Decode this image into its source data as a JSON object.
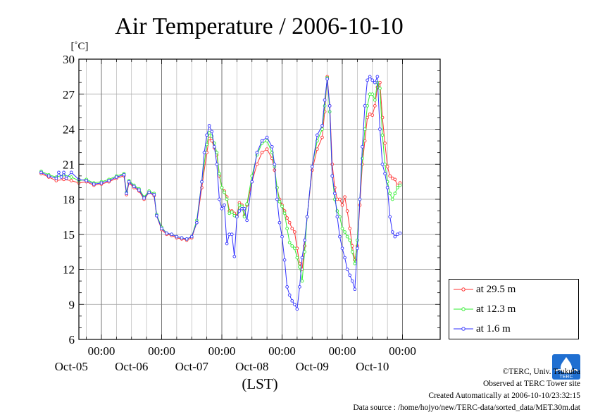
{
  "chart_data": {
    "type": "line",
    "title": "Air Temperature / 2006-10-10",
    "ylabel": "[˚C]",
    "xlabel": "(LST)",
    "ylim": [
      6,
      30
    ],
    "yticks": [
      6,
      9,
      12,
      15,
      18,
      21,
      24,
      27,
      30
    ],
    "xlim_hours": [
      0,
      144
    ],
    "x_tick_labels": [
      {
        "time": "00:00",
        "date": "Oct-05"
      },
      {
        "time": "00:00",
        "date": "Oct-06"
      },
      {
        "time": "00:00",
        "date": "Oct-07"
      },
      {
        "time": "00:00",
        "date": "Oct-08"
      },
      {
        "time": "00:00",
        "date": "Oct-09"
      },
      {
        "time": "00:00",
        "date": "Oct-10"
      }
    ],
    "grid": true,
    "legend_position": "right",
    "series": [
      {
        "name": "at 29.5 m",
        "color": "#ff3333",
        "points": [
          [
            0,
            20.2
          ],
          [
            3,
            19.9
          ],
          [
            6,
            19.6
          ],
          [
            9,
            19.7
          ],
          [
            12,
            19.6
          ],
          [
            15,
            19.4
          ],
          [
            18,
            19.5
          ],
          [
            21,
            19.2
          ],
          [
            24,
            19.3
          ],
          [
            27,
            19.5
          ],
          [
            30,
            19.8
          ],
          [
            33,
            20.0
          ],
          [
            34,
            18.4
          ],
          [
            35,
            19.4
          ],
          [
            37,
            19.0
          ],
          [
            39,
            18.7
          ],
          [
            41,
            18.0
          ],
          [
            43,
            18.6
          ],
          [
            45,
            18.3
          ],
          [
            46,
            16.6
          ],
          [
            48,
            15.4
          ],
          [
            50,
            15.0
          ],
          [
            52,
            14.9
          ],
          [
            54,
            14.7
          ],
          [
            56,
            14.6
          ],
          [
            58,
            14.5
          ],
          [
            60,
            14.7
          ],
          [
            62,
            16.0
          ],
          [
            64,
            19.0
          ],
          [
            66,
            22.0
          ],
          [
            67,
            23.2
          ],
          [
            68,
            23.0
          ],
          [
            69,
            22.4
          ],
          [
            70,
            21.8
          ],
          [
            71,
            20.0
          ],
          [
            72,
            19.0
          ],
          [
            73,
            18.7
          ],
          [
            74,
            18.2
          ],
          [
            75,
            17.0
          ],
          [
            76,
            17.0
          ],
          [
            77,
            16.8
          ],
          [
            78,
            16.6
          ],
          [
            79,
            17.7
          ],
          [
            80,
            17.5
          ],
          [
            81,
            16.6
          ],
          [
            82,
            17.5
          ],
          [
            84,
            19.5
          ],
          [
            86,
            21.0
          ],
          [
            88,
            22.0
          ],
          [
            90,
            22.3
          ],
          [
            92,
            21.5
          ],
          [
            93,
            20.5
          ],
          [
            94,
            19.0
          ],
          [
            95,
            18.0
          ],
          [
            96,
            17.5
          ],
          [
            97,
            17.0
          ],
          [
            98,
            16.4
          ],
          [
            99,
            16.0
          ],
          [
            100,
            15.5
          ],
          [
            101,
            15.2
          ],
          [
            102,
            13.8
          ],
          [
            103,
            12.5
          ],
          [
            104,
            12.0
          ],
          [
            105,
            14.0
          ],
          [
            106,
            16.5
          ],
          [
            108,
            20.5
          ],
          [
            110,
            22.3
          ],
          [
            112,
            23.3
          ],
          [
            113,
            25.5
          ],
          [
            114,
            28.5
          ],
          [
            115,
            26.0
          ],
          [
            116,
            21.0
          ],
          [
            117,
            19.0
          ],
          [
            118,
            18.0
          ],
          [
            119,
            18.0
          ],
          [
            120,
            17.5
          ],
          [
            121,
            18.2
          ],
          [
            122,
            17.0
          ],
          [
            123,
            15.5
          ],
          [
            124,
            14.0
          ],
          [
            125,
            12.8
          ],
          [
            126,
            14.0
          ],
          [
            127,
            17.5
          ],
          [
            128,
            21.0
          ],
          [
            129,
            23.0
          ],
          [
            130,
            25.0
          ],
          [
            131,
            25.3
          ],
          [
            132,
            25.2
          ],
          [
            133,
            26.0
          ],
          [
            134,
            27.6
          ],
          [
            135,
            28.0
          ],
          [
            136,
            25.0
          ],
          [
            137,
            22.8
          ],
          [
            138,
            20.8
          ],
          [
            139,
            20.0
          ],
          [
            140,
            19.8
          ],
          [
            141,
            19.7
          ],
          [
            142,
            19.2
          ],
          [
            143,
            19.4
          ]
        ]
      },
      {
        "name": "at 12.3 m",
        "color": "#33ee33",
        "points": [
          [
            0,
            20.4
          ],
          [
            3,
            20.1
          ],
          [
            6,
            19.9
          ],
          [
            9,
            20.1
          ],
          [
            12,
            19.9
          ],
          [
            15,
            19.6
          ],
          [
            18,
            19.7
          ],
          [
            21,
            19.4
          ],
          [
            24,
            19.5
          ],
          [
            27,
            19.7
          ],
          [
            30,
            20.0
          ],
          [
            33,
            20.2
          ],
          [
            34,
            18.6
          ],
          [
            35,
            19.6
          ],
          [
            37,
            19.2
          ],
          [
            39,
            18.9
          ],
          [
            41,
            18.2
          ],
          [
            43,
            18.7
          ],
          [
            45,
            18.5
          ],
          [
            46,
            16.7
          ],
          [
            48,
            15.6
          ],
          [
            50,
            15.1
          ],
          [
            52,
            15.0
          ],
          [
            54,
            14.8
          ],
          [
            56,
            14.7
          ],
          [
            58,
            14.6
          ],
          [
            60,
            14.8
          ],
          [
            62,
            16.2
          ],
          [
            64,
            19.5
          ],
          [
            66,
            22.7
          ],
          [
            67,
            23.7
          ],
          [
            68,
            23.4
          ],
          [
            69,
            22.8
          ],
          [
            70,
            22.0
          ],
          [
            71,
            20.2
          ],
          [
            72,
            19.0
          ],
          [
            73,
            18.6
          ],
          [
            74,
            18.0
          ],
          [
            75,
            16.8
          ],
          [
            76,
            16.9
          ],
          [
            77,
            16.6
          ],
          [
            78,
            16.5
          ],
          [
            79,
            17.5
          ],
          [
            80,
            17.4
          ],
          [
            81,
            16.5
          ],
          [
            82,
            17.6
          ],
          [
            84,
            20.0
          ],
          [
            86,
            21.8
          ],
          [
            88,
            22.8
          ],
          [
            90,
            23.0
          ],
          [
            92,
            22.0
          ],
          [
            93,
            20.8
          ],
          [
            94,
            19.0
          ],
          [
            95,
            17.8
          ],
          [
            96,
            17.4
          ],
          [
            97,
            16.8
          ],
          [
            98,
            15.5
          ],
          [
            99,
            14.3
          ],
          [
            100,
            14.0
          ],
          [
            101,
            13.8
          ],
          [
            102,
            13.0
          ],
          [
            103,
            12.2
          ],
          [
            104,
            11.0
          ],
          [
            105,
            13.5
          ],
          [
            106,
            16.5
          ],
          [
            108,
            20.8
          ],
          [
            110,
            23.0
          ],
          [
            112,
            24.0
          ],
          [
            113,
            26.0
          ],
          [
            114,
            28.4
          ],
          [
            115,
            25.5
          ],
          [
            116,
            20.0
          ],
          [
            117,
            18.0
          ],
          [
            118,
            17.0
          ],
          [
            119,
            16.5
          ],
          [
            120,
            15.5
          ],
          [
            121,
            15.2
          ],
          [
            122,
            14.8
          ],
          [
            123,
            14.5
          ],
          [
            124,
            13.5
          ],
          [
            125,
            12.5
          ],
          [
            126,
            14.5
          ],
          [
            127,
            18.0
          ],
          [
            128,
            21.5
          ],
          [
            129,
            24.0
          ],
          [
            130,
            26.0
          ],
          [
            131,
            27.0
          ],
          [
            132,
            27.0
          ],
          [
            133,
            26.5
          ],
          [
            134,
            28.0
          ],
          [
            135,
            27.5
          ],
          [
            136,
            23.5
          ],
          [
            137,
            21.0
          ],
          [
            138,
            19.5
          ],
          [
            139,
            18.5
          ],
          [
            140,
            18.0
          ],
          [
            141,
            18.5
          ],
          [
            142,
            19.0
          ],
          [
            143,
            19.2
          ]
        ]
      },
      {
        "name": "at 1.6 m",
        "color": "#3333ff",
        "points": [
          [
            0,
            20.3
          ],
          [
            3,
            20.0
          ],
          [
            6,
            19.8
          ],
          [
            7,
            20.3
          ],
          [
            8,
            19.9
          ],
          [
            9,
            20.3
          ],
          [
            10,
            19.8
          ],
          [
            12,
            20.3
          ],
          [
            15,
            19.7
          ],
          [
            18,
            19.6
          ],
          [
            21,
            19.3
          ],
          [
            24,
            19.4
          ],
          [
            27,
            19.6
          ],
          [
            30,
            19.9
          ],
          [
            33,
            20.1
          ],
          [
            34,
            18.5
          ],
          [
            35,
            19.5
          ],
          [
            37,
            19.1
          ],
          [
            39,
            18.8
          ],
          [
            41,
            18.1
          ],
          [
            43,
            18.6
          ],
          [
            45,
            18.4
          ],
          [
            46,
            16.6
          ],
          [
            48,
            15.5
          ],
          [
            50,
            15.1
          ],
          [
            52,
            15.0
          ],
          [
            54,
            14.8
          ],
          [
            56,
            14.7
          ],
          [
            58,
            14.6
          ],
          [
            60,
            14.8
          ],
          [
            62,
            16.0
          ],
          [
            64,
            19.5
          ],
          [
            65,
            22.0
          ],
          [
            66,
            23.5
          ],
          [
            67,
            24.3
          ],
          [
            68,
            23.8
          ],
          [
            69,
            22.5
          ],
          [
            70,
            21.0
          ],
          [
            71,
            18.0
          ],
          [
            72,
            17.2
          ],
          [
            73,
            17.5
          ],
          [
            74,
            14.2
          ],
          [
            75,
            15.0
          ],
          [
            76,
            15.0
          ],
          [
            77,
            13.1
          ],
          [
            78,
            16.5
          ],
          [
            79,
            17.0
          ],
          [
            80,
            17.2
          ],
          [
            81,
            17.2
          ],
          [
            82,
            16.2
          ],
          [
            84,
            19.5
          ],
          [
            86,
            22.0
          ],
          [
            88,
            23.0
          ],
          [
            90,
            23.3
          ],
          [
            92,
            22.5
          ],
          [
            93,
            21.0
          ],
          [
            94,
            18.0
          ],
          [
            95,
            16.0
          ],
          [
            96,
            14.8
          ],
          [
            97,
            12.8
          ],
          [
            98,
            10.5
          ],
          [
            99,
            9.8
          ],
          [
            100,
            9.3
          ],
          [
            101,
            9.0
          ],
          [
            102,
            8.6
          ],
          [
            103,
            10.5
          ],
          [
            104,
            13.0
          ],
          [
            105,
            14.5
          ],
          [
            106,
            16.5
          ],
          [
            108,
            20.8
          ],
          [
            110,
            23.5
          ],
          [
            112,
            24.3
          ],
          [
            113,
            26.5
          ],
          [
            114,
            28.3
          ],
          [
            115,
            26.0
          ],
          [
            116,
            20.0
          ],
          [
            117,
            18.5
          ],
          [
            118,
            16.5
          ],
          [
            119,
            14.8
          ],
          [
            120,
            13.8
          ],
          [
            121,
            13.0
          ],
          [
            122,
            12.0
          ],
          [
            123,
            11.5
          ],
          [
            124,
            11.0
          ],
          [
            125,
            10.3
          ],
          [
            126,
            13.8
          ],
          [
            127,
            18.0
          ],
          [
            128,
            22.5
          ],
          [
            129,
            26.0
          ],
          [
            130,
            28.2
          ],
          [
            131,
            28.5
          ],
          [
            132,
            28.2
          ],
          [
            133,
            28.0
          ],
          [
            134,
            28.5
          ],
          [
            135,
            24.0
          ],
          [
            136,
            21.0
          ],
          [
            137,
            20.2
          ],
          [
            138,
            19.0
          ],
          [
            139,
            16.5
          ],
          [
            140,
            15.2
          ],
          [
            141,
            14.8
          ],
          [
            142,
            15.0
          ],
          [
            143,
            15.1
          ]
        ]
      }
    ]
  },
  "footer": {
    "copyright": "©TERC, Univ. Tsukuba",
    "observed": "Observed at TERC Tower site",
    "created": "Created Automatically at 2006-10-10/23:32:15",
    "source": "Data source : /home/hojyo/new/TERC-data/sorted_data/MET.30m.dat"
  },
  "logo": {
    "label": "TERC",
    "color": "#1f6fd1"
  }
}
